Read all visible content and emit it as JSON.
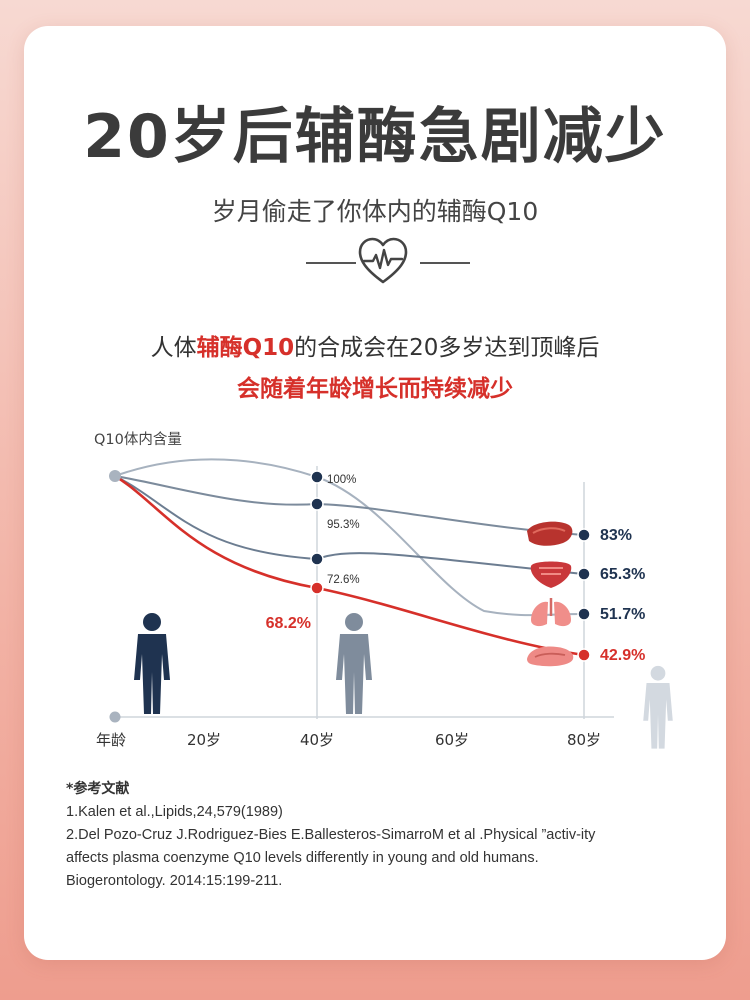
{
  "header": {
    "title": "20岁后辅酶急剧减少",
    "subtitle": "岁月偷走了你体内的辅酶Q10"
  },
  "intro": {
    "line1_pre": "人体",
    "line1_highlight": "辅酶Q10",
    "line1_post": "的合成会在20多岁达到顶峰后",
    "line2": "会随着年龄增长而持续减少"
  },
  "colors": {
    "accent_red": "#d6302a",
    "navy": "#1f3350",
    "gray_line": "#8a96a6",
    "title": "#3b3b3b"
  },
  "chart_data": {
    "type": "line",
    "ylabel": "Q10体内含量",
    "xlabel": "年龄",
    "categories": [
      "20岁",
      "40岁",
      "60岁",
      "80岁"
    ],
    "x": [
      0,
      40,
      80
    ],
    "series": [
      {
        "name": "",
        "organ_icon": "liver-icon",
        "values": [
          null,
          95.3,
          83
        ],
        "labels": [
          "",
          "95.3%",
          "83%"
        ]
      },
      {
        "name": "",
        "organ_icon": "heart-organ-icon",
        "values": [
          null,
          72.6,
          65.3
        ],
        "labels": [
          "",
          "72.6%",
          "65.3%"
        ]
      },
      {
        "name": "",
        "organ_icon": "lungs-icon",
        "values": [
          null,
          100,
          51.7
        ],
        "labels": [
          "",
          "100%",
          "51.7%"
        ]
      },
      {
        "name": "",
        "organ_icon": "pancreas-icon",
        "values": [
          null,
          68.2,
          42.9
        ],
        "labels": [
          "",
          "68.2%",
          "42.9%"
        ],
        "highlight": true
      }
    ]
  },
  "references": {
    "heading": "*参考文献",
    "items": [
      "1.Kalen et al.,Lipids,24,579(1989)",
      "2.Del Pozo-Cruz J.Rodriguez-Bies E.Ballesteros-SimarroM et al .Physical ”activ-ity",
      "affects plasma coenzyme Q10 levels differently in young and old humans.",
      "Biogerontology. 2014:15:199-211."
    ]
  }
}
